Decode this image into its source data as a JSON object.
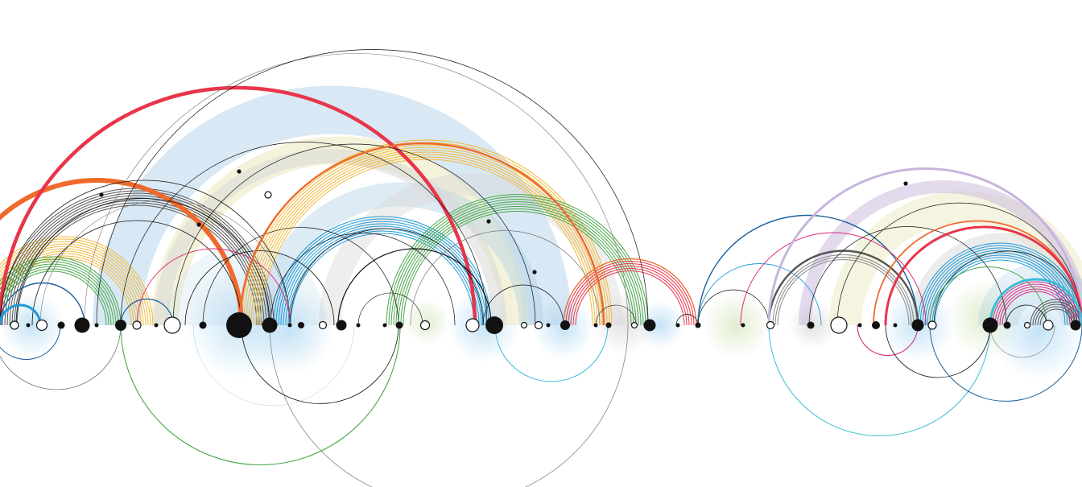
{
  "palette": {
    "background": "#ffffff",
    "ink": "#111111",
    "grey": "#777777",
    "light_grey": "#d9d9d9",
    "orange": "#ef6a2c",
    "red": "#e8354a",
    "magenta": "#d92a7c",
    "yellow": "#f2b93b",
    "pale_yellow": "#efeccb",
    "green": "#4aa84a",
    "blue": "#1f9ad6",
    "dark_blue": "#1a5f9e",
    "light_blue": "#a9cde6",
    "cyan": "#3bbbd8",
    "lavender": "#c7b5dc",
    "glow_blue": "#bfe0f5",
    "glow_green": "#dfeccd"
  },
  "legend": []
}
